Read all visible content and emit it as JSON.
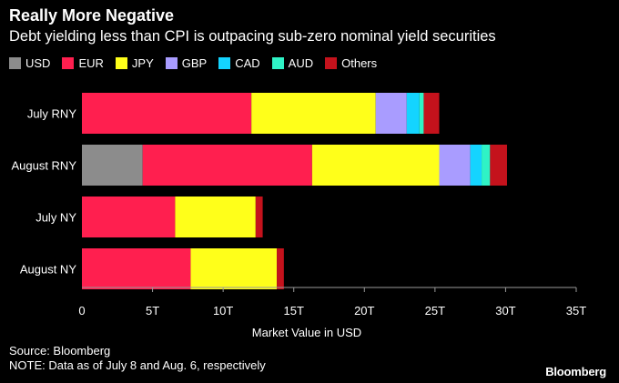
{
  "chart_data": {
    "type": "bar",
    "orientation": "horizontal",
    "stacked": true,
    "title": "Really More Negative",
    "subtitle": "Debt yielding less than CPI is outpacing sub-zero nominal yield securities",
    "xlabel": "Market Value in USD",
    "xlim": [
      0,
      35
    ],
    "x_ticks": [
      "0",
      "5T",
      "10T",
      "15T",
      "20T",
      "25T",
      "30T",
      "35T"
    ],
    "x_tick_values": [
      0,
      5,
      10,
      15,
      20,
      25,
      30,
      35
    ],
    "units": "trillion USD",
    "grid": false,
    "legend_position": "top-left",
    "categories": [
      "July RNY",
      "August RNY",
      "July NY",
      "August NY"
    ],
    "series": [
      {
        "name": "USD",
        "color": "#8c8c8c",
        "values": [
          0,
          4.3,
          0,
          0
        ]
      },
      {
        "name": "EUR",
        "color": "#ff1f4f",
        "values": [
          12.0,
          12.0,
          6.6,
          7.7
        ]
      },
      {
        "name": "JPY",
        "color": "#ffff1a",
        "values": [
          8.8,
          9.0,
          5.7,
          6.1
        ]
      },
      {
        "name": "GBP",
        "color": "#a99cff",
        "values": [
          2.2,
          2.2,
          0,
          0
        ]
      },
      {
        "name": "CAD",
        "color": "#14d4ff",
        "values": [
          0.9,
          0.8,
          0,
          0
        ]
      },
      {
        "name": "AUD",
        "color": "#2ff3c6",
        "values": [
          0.3,
          0.6,
          0,
          0
        ]
      },
      {
        "name": "Others",
        "color": "#c4121c",
        "values": [
          1.1,
          1.2,
          0.5,
          0.5
        ]
      }
    ]
  },
  "footer": {
    "source": "Source: Bloomberg",
    "note": "NOTE: Data as of July 8 and Aug. 6, respectively",
    "brand": "Bloomberg"
  }
}
